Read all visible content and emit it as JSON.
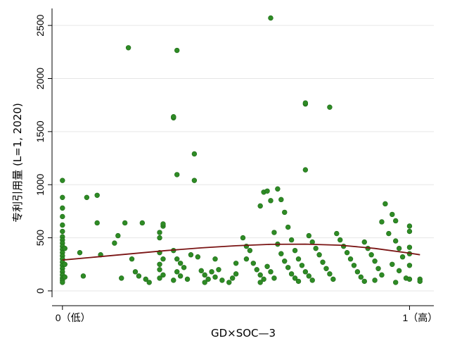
{
  "chart_data": {
    "type": "scatter",
    "xlabel": "GD×SOC—3",
    "ylabel": "专利引用量 (L=1, 2020)",
    "x_ticks": [
      {
        "value": 0,
        "label": "0（低）"
      },
      {
        "value": 1,
        "label": "1（高）"
      }
    ],
    "y_ticks": [
      0,
      500,
      1000,
      1500,
      2000,
      2500
    ],
    "xlim": [
      -0.03,
      1.07
    ],
    "ylim": [
      -60,
      2660
    ],
    "grid": "horizontal",
    "colors": {
      "points": "#2e8b25",
      "point_edge": "#1f6a18",
      "fit_line": "#7a1414",
      "grid": "#e6e6e6",
      "axis": "#000000"
    },
    "series": [
      {
        "kind": "points",
        "points": [
          [
            0.0,
            1040
          ],
          [
            0.0,
            880
          ],
          [
            0.0,
            780
          ],
          [
            0.0,
            700
          ],
          [
            0.0,
            620
          ],
          [
            0.0,
            560
          ],
          [
            0.0,
            510
          ],
          [
            0.0,
            480
          ],
          [
            0.0,
            450
          ],
          [
            0.0,
            420
          ],
          [
            0.0,
            390
          ],
          [
            0.0,
            360
          ],
          [
            0.0,
            330
          ],
          [
            0.0,
            300
          ],
          [
            0.0,
            270
          ],
          [
            0.0,
            240
          ],
          [
            0.0,
            210
          ],
          [
            0.0,
            180
          ],
          [
            0.0,
            150
          ],
          [
            0.0,
            120
          ],
          [
            0.0,
            100
          ],
          [
            0.0,
            80
          ],
          [
            0.007,
            400
          ],
          [
            0.007,
            250
          ],
          [
            0.007,
            130
          ],
          [
            0.07,
            880
          ],
          [
            0.05,
            360
          ],
          [
            0.06,
            140
          ],
          [
            0.1,
            900
          ],
          [
            0.1,
            640
          ],
          [
            0.11,
            340
          ],
          [
            0.15,
            450
          ],
          [
            0.16,
            520
          ],
          [
            0.19,
            2290
          ],
          [
            0.18,
            640
          ],
          [
            0.2,
            300
          ],
          [
            0.21,
            180
          ],
          [
            0.22,
            140
          ],
          [
            0.17,
            120
          ],
          [
            0.23,
            640
          ],
          [
            0.24,
            110
          ],
          [
            0.25,
            80
          ],
          [
            0.28,
            550
          ],
          [
            0.28,
            500
          ],
          [
            0.29,
            610
          ],
          [
            0.29,
            630
          ],
          [
            0.28,
            360
          ],
          [
            0.29,
            300
          ],
          [
            0.28,
            250
          ],
          [
            0.28,
            200
          ],
          [
            0.29,
            150
          ],
          [
            0.28,
            120
          ],
          [
            0.32,
            1630
          ],
          [
            0.32,
            1640
          ],
          [
            0.33,
            2265
          ],
          [
            0.33,
            1095
          ],
          [
            0.32,
            380
          ],
          [
            0.33,
            300
          ],
          [
            0.34,
            260
          ],
          [
            0.35,
            220
          ],
          [
            0.33,
            180
          ],
          [
            0.34,
            140
          ],
          [
            0.32,
            100
          ],
          [
            0.36,
            110
          ],
          [
            0.38,
            1290
          ],
          [
            0.38,
            1040
          ],
          [
            0.37,
            340
          ],
          [
            0.39,
            320
          ],
          [
            0.4,
            190
          ],
          [
            0.41,
            150
          ],
          [
            0.42,
            110
          ],
          [
            0.41,
            80
          ],
          [
            0.43,
            180
          ],
          [
            0.44,
            130
          ],
          [
            0.44,
            300
          ],
          [
            0.45,
            200
          ],
          [
            0.46,
            100
          ],
          [
            0.48,
            80
          ],
          [
            0.49,
            120
          ],
          [
            0.5,
            160
          ],
          [
            0.5,
            260
          ],
          [
            0.52,
            500
          ],
          [
            0.53,
            420
          ],
          [
            0.54,
            380
          ],
          [
            0.53,
            300
          ],
          [
            0.55,
            260
          ],
          [
            0.56,
            200
          ],
          [
            0.57,
            150
          ],
          [
            0.58,
            110
          ],
          [
            0.57,
            80
          ],
          [
            0.59,
            230
          ],
          [
            0.6,
            180
          ],
          [
            0.61,
            120
          ],
          [
            0.57,
            800
          ],
          [
            0.58,
            930
          ],
          [
            0.6,
            850
          ],
          [
            0.59,
            940
          ],
          [
            0.61,
            550
          ],
          [
            0.62,
            440
          ],
          [
            0.63,
            350
          ],
          [
            0.64,
            280
          ],
          [
            0.65,
            220
          ],
          [
            0.66,
            160
          ],
          [
            0.67,
            120
          ],
          [
            0.68,
            90
          ],
          [
            0.6,
            2570
          ],
          [
            0.62,
            960
          ],
          [
            0.63,
            860
          ],
          [
            0.64,
            740
          ],
          [
            0.65,
            600
          ],
          [
            0.66,
            480
          ],
          [
            0.67,
            380
          ],
          [
            0.68,
            300
          ],
          [
            0.69,
            240
          ],
          [
            0.7,
            180
          ],
          [
            0.71,
            140
          ],
          [
            0.72,
            100
          ],
          [
            0.7,
            1760
          ],
          [
            0.7,
            1770
          ],
          [
            0.7,
            1140
          ],
          [
            0.71,
            520
          ],
          [
            0.72,
            460
          ],
          [
            0.73,
            400
          ],
          [
            0.74,
            340
          ],
          [
            0.75,
            270
          ],
          [
            0.76,
            210
          ],
          [
            0.77,
            160
          ],
          [
            0.78,
            110
          ],
          [
            0.77,
            1730
          ],
          [
            0.79,
            540
          ],
          [
            0.8,
            480
          ],
          [
            0.81,
            420
          ],
          [
            0.82,
            360
          ],
          [
            0.83,
            300
          ],
          [
            0.84,
            240
          ],
          [
            0.85,
            180
          ],
          [
            0.86,
            130
          ],
          [
            0.87,
            90
          ],
          [
            0.87,
            460
          ],
          [
            0.88,
            400
          ],
          [
            0.89,
            340
          ],
          [
            0.9,
            280
          ],
          [
            0.91,
            210
          ],
          [
            0.92,
            150
          ],
          [
            0.9,
            100
          ],
          [
            0.93,
            820
          ],
          [
            0.92,
            650
          ],
          [
            0.95,
            720
          ],
          [
            0.96,
            660
          ],
          [
            0.94,
            540
          ],
          [
            0.96,
            470
          ],
          [
            0.97,
            400
          ],
          [
            0.98,
            320
          ],
          [
            0.95,
            250
          ],
          [
            0.97,
            190
          ],
          [
            0.99,
            120
          ],
          [
            0.96,
            80
          ],
          [
            1.0,
            610
          ],
          [
            1.0,
            560
          ],
          [
            1.0,
            410
          ],
          [
            1.0,
            350
          ],
          [
            1.0,
            240
          ],
          [
            1.0,
            110
          ],
          [
            1.03,
            110
          ],
          [
            1.03,
            90
          ]
        ]
      },
      {
        "kind": "fit",
        "x": [
          0.0,
          0.1,
          0.2,
          0.3,
          0.4,
          0.5,
          0.6,
          0.7,
          0.8,
          0.9,
          1.0,
          1.03
        ],
        "y": [
          290,
          320,
          350,
          380,
          405,
          425,
          438,
          440,
          430,
          400,
          355,
          340
        ]
      }
    ]
  }
}
